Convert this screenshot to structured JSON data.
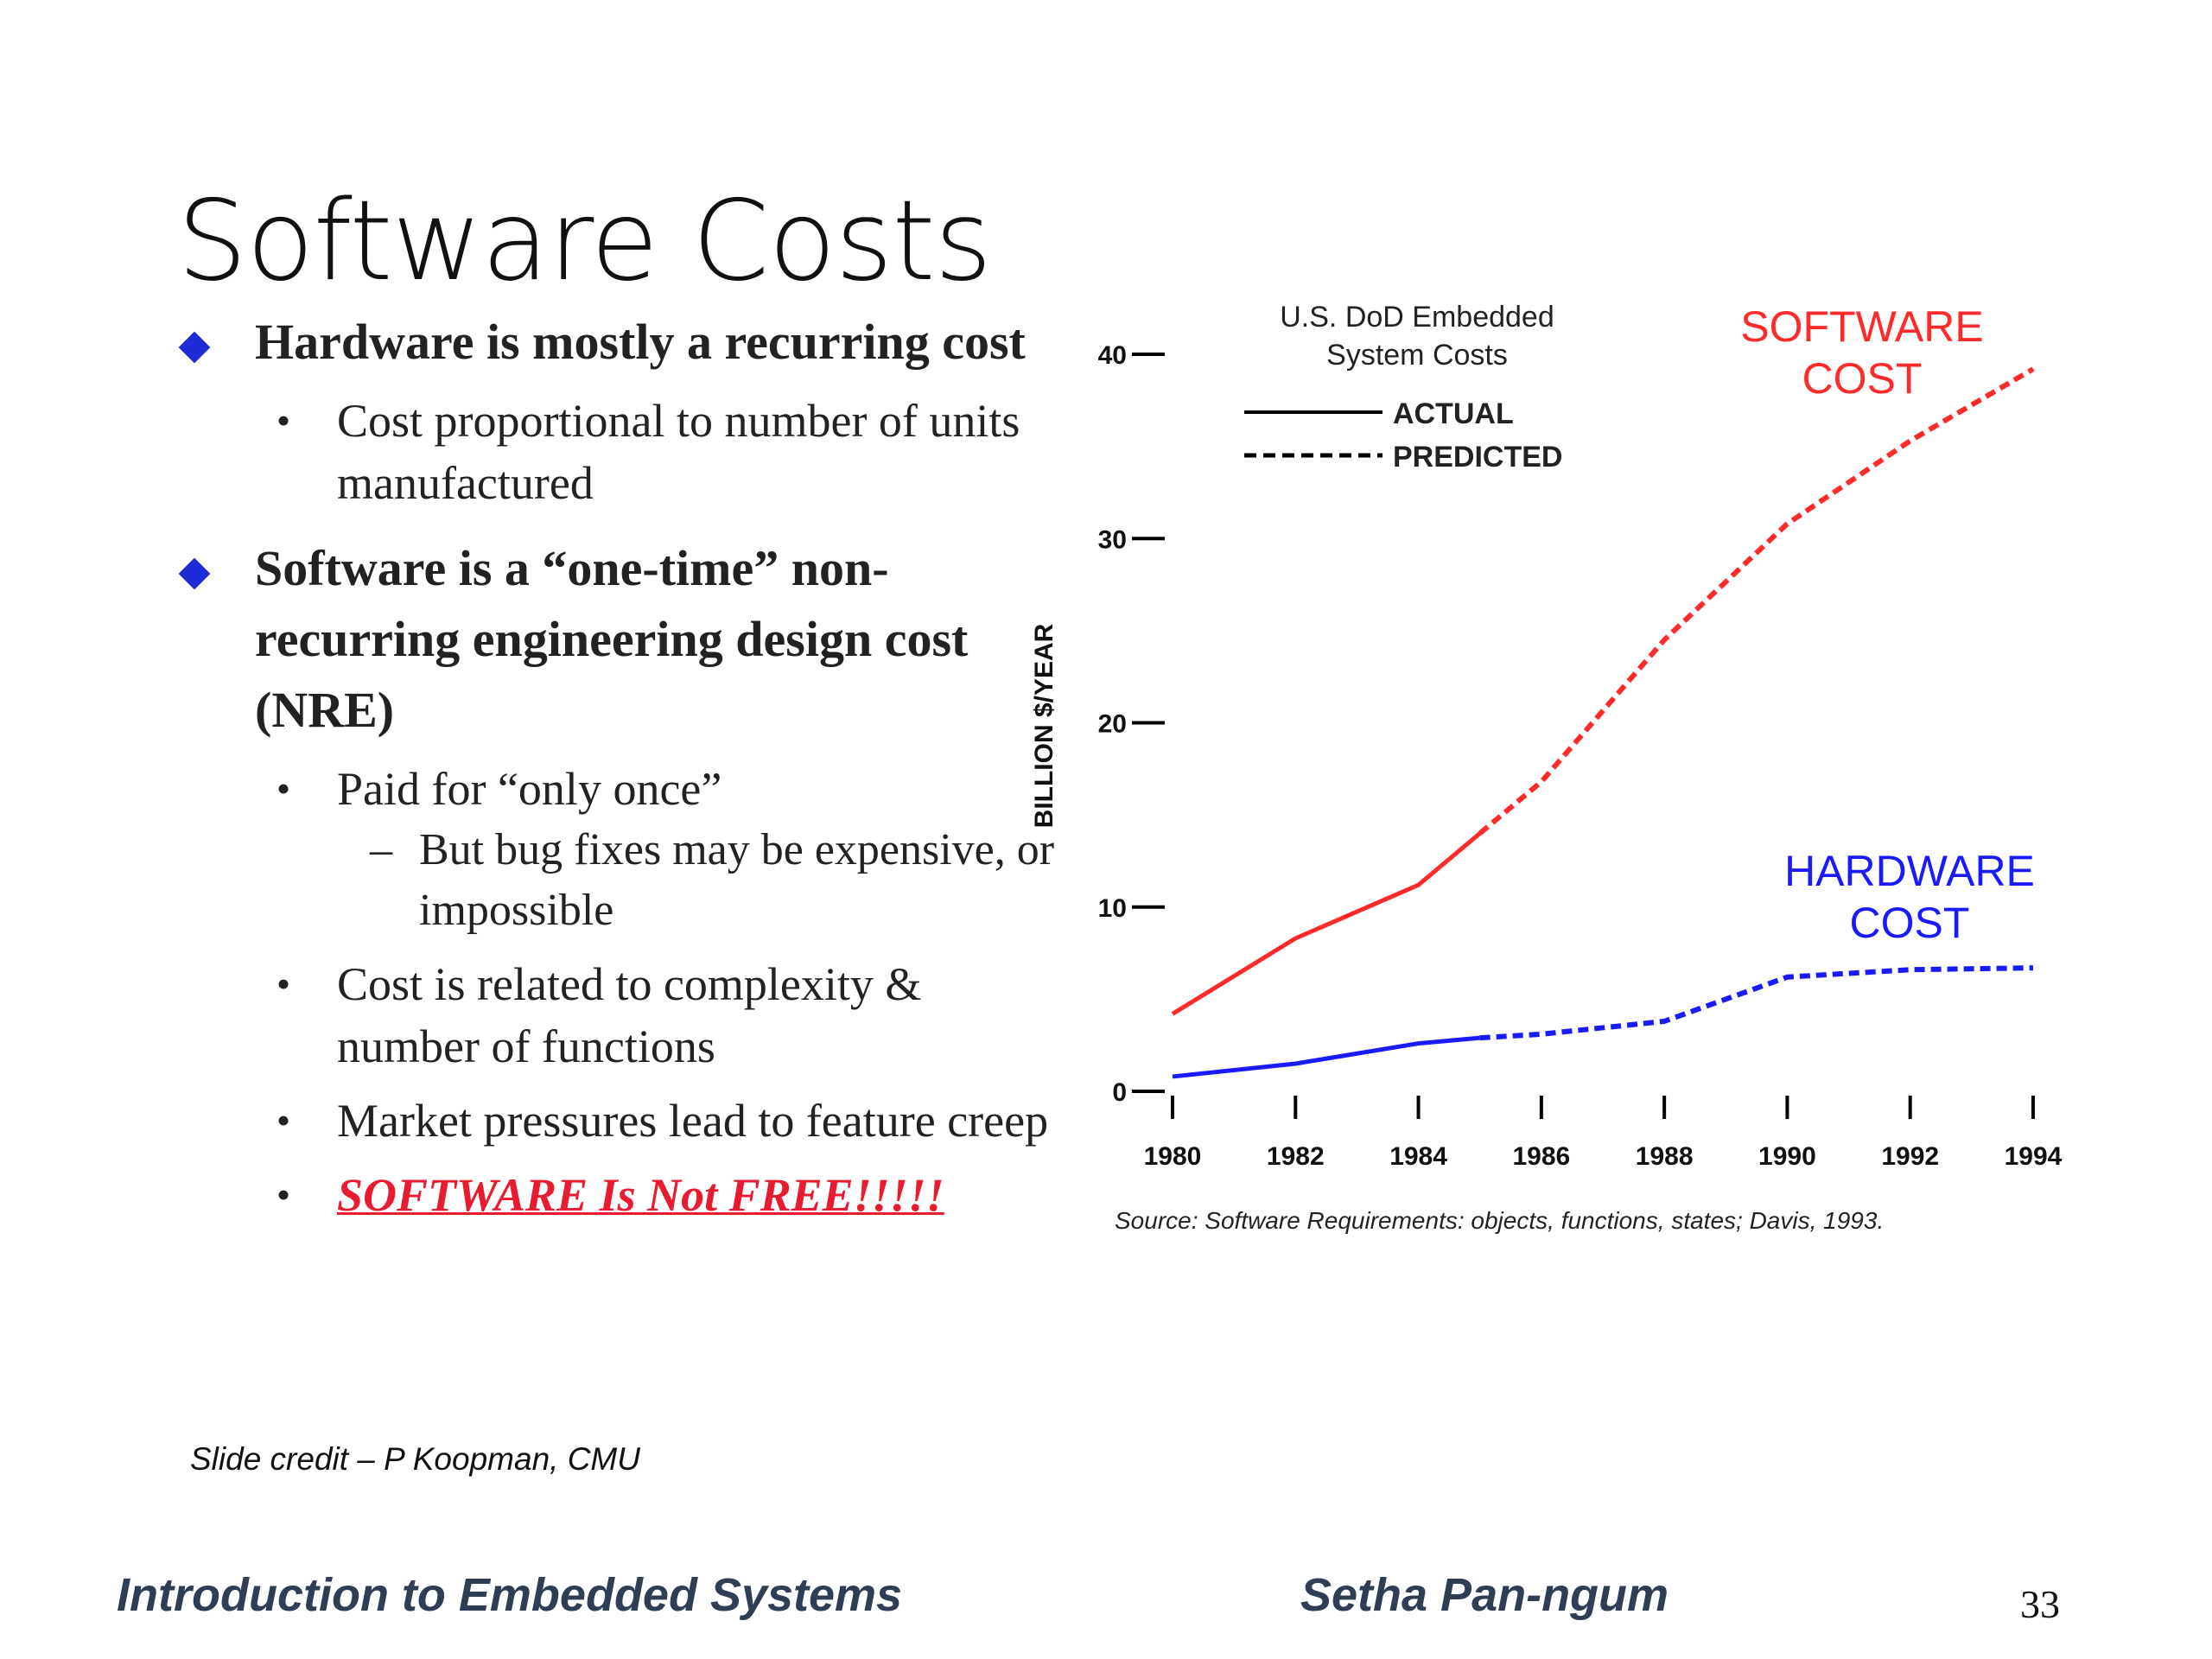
{
  "slide": {
    "title": "Software Costs",
    "credit": "Slide credit – P Koopman, CMU",
    "footer_left": "Introduction to Embedded Systems",
    "footer_center": "Setha Pan-ngum",
    "page_number": "33",
    "bullets": {
      "b1": "Hardware is mostly a recurring cost",
      "b1_sub1": "Cost proportional to number of units manufactured",
      "b2": "Software is a “one-time” non-recurring engineering design cost  (NRE)",
      "b2_sub1": "Paid for “only once”",
      "b2_sub1_sub1": "But bug fixes may be expensive, or impossible",
      "b2_sub2": "Cost is related to complexity & number of functions",
      "b2_sub3": "Market pressures lead to feature creep",
      "b2_sub4": "SOFTWARE Is Not FREE!!!!!"
    }
  },
  "colors": {
    "bullet_diamond": "#1f2bd6",
    "emphasis_red": "#e81b2f",
    "footer_text": "#2f3e55",
    "software_line": "#ff2a2a",
    "hardware_line": "#1a1aff"
  },
  "chart_data": {
    "type": "line",
    "title": "U.S. DoD Embedded System Costs",
    "ylabel": "BILLION $/YEAR",
    "xlabel": "",
    "ylim": [
      0,
      40
    ],
    "yticks": [
      0,
      10,
      20,
      30,
      40
    ],
    "xticks": [
      "1980",
      "1982",
      "1984",
      "1986",
      "1988",
      "1990",
      "1992",
      "1994"
    ],
    "legend": {
      "actual": "ACTUAL",
      "predicted": "PREDICTED",
      "position": "top-left"
    },
    "source": "Source: Software Requirements: objects, functions, states; Davis, 1993.",
    "grid": false,
    "series": [
      {
        "name": "SOFTWARE COST",
        "label_lines": [
          "SOFTWARE",
          "COST"
        ],
        "color": "#ff2a2a",
        "actual": [
          [
            1980,
            4.2
          ],
          [
            1982,
            8.3
          ],
          [
            1984,
            11.2
          ],
          [
            1985,
            14.0
          ]
        ],
        "predicted": [
          [
            1985,
            14.0
          ],
          [
            1986,
            16.8
          ],
          [
            1988,
            24.5
          ],
          [
            1990,
            30.8
          ],
          [
            1992,
            35.3
          ],
          [
            1994,
            39.2
          ]
        ]
      },
      {
        "name": "HARDWARE COST",
        "label_lines": [
          "HARDWARE",
          "COST"
        ],
        "color": "#1a1aff",
        "actual": [
          [
            1980,
            0.8
          ],
          [
            1982,
            1.5
          ],
          [
            1984,
            2.6
          ],
          [
            1985,
            2.9
          ]
        ],
        "predicted": [
          [
            1985,
            2.9
          ],
          [
            1986,
            3.1
          ],
          [
            1988,
            3.8
          ],
          [
            1990,
            6.2
          ],
          [
            1992,
            6.6
          ],
          [
            1994,
            6.7
          ]
        ]
      }
    ]
  }
}
